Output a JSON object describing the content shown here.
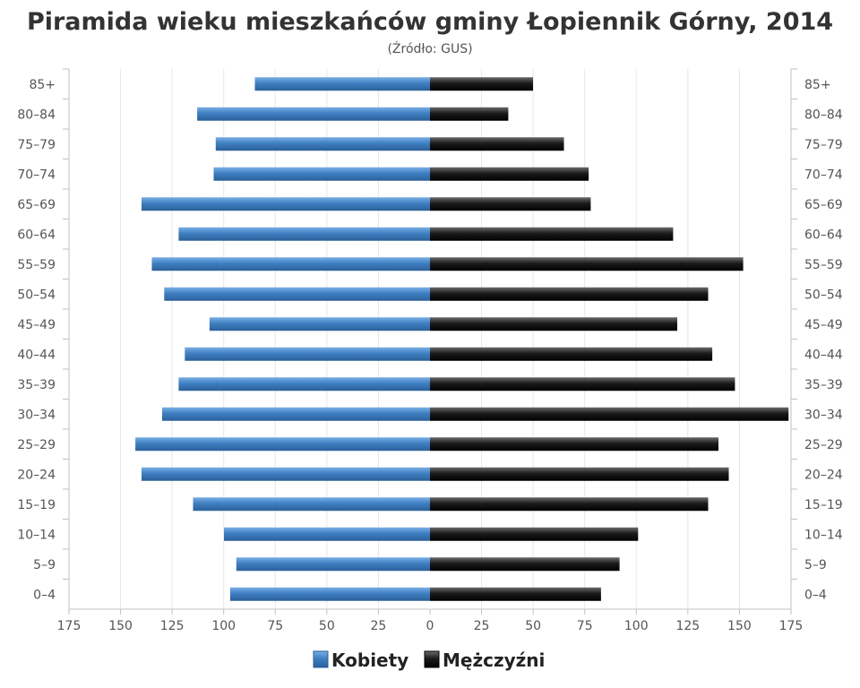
{
  "chart_data": {
    "type": "bar",
    "orientation": "horizontal",
    "layout": "population-pyramid",
    "title": "Piramida wieku mieszkańców gminy Łopiennik Górny, 2014",
    "subtitle": "(Źródło: GUS)",
    "categories": [
      "85+",
      "80–84",
      "75–79",
      "70–74",
      "65–69",
      "60–64",
      "55–59",
      "50–54",
      "45–49",
      "40–44",
      "35–39",
      "30–34",
      "25–29",
      "20–24",
      "15–19",
      "10–14",
      "5–9",
      "0–4"
    ],
    "series": [
      {
        "name": "Kobiety",
        "side": "left",
        "color": "#3f7fc2",
        "values": [
          85,
          113,
          104,
          105,
          140,
          122,
          135,
          129,
          107,
          119,
          122,
          130,
          143,
          140,
          115,
          100,
          94,
          97
        ]
      },
      {
        "name": "Mężczyźni",
        "side": "right",
        "color": "#1b1b1b",
        "values": [
          50,
          38,
          65,
          77,
          78,
          118,
          152,
          135,
          120,
          137,
          148,
          174,
          140,
          145,
          135,
          101,
          92,
          83
        ]
      }
    ],
    "x_ticks": [
      "175",
      "150",
      "125",
      "100",
      "75",
      "50",
      "25",
      "0",
      "25",
      "50",
      "75",
      "100",
      "125",
      "150",
      "175"
    ],
    "xlim": [
      -175,
      175
    ],
    "grid": true,
    "legend_position": "bottom"
  }
}
